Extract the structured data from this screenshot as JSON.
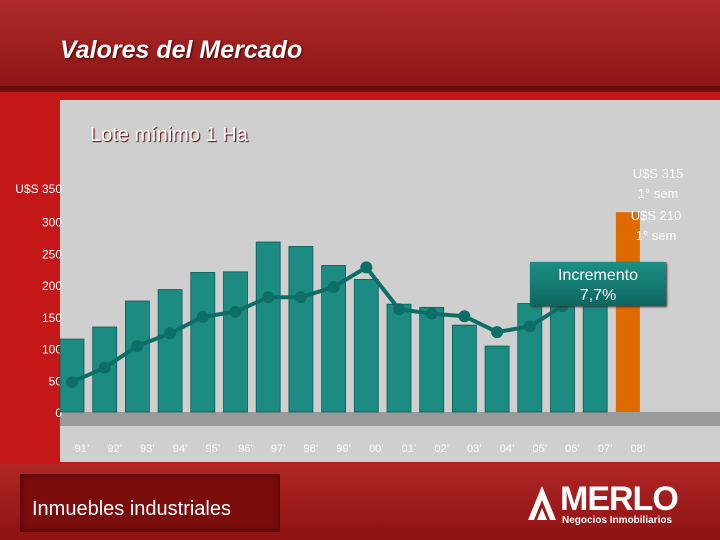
{
  "page": {
    "title": "Valores del Mercado",
    "chart_header": "Lote mínimo 1 Ha",
    "footer_label": "Inmuebles industriales",
    "brand": {
      "name": "MERLO",
      "tagline": "Negocios Inmobiliarios"
    }
  },
  "colors": {
    "header": "#a81f1f",
    "content": "#c41818",
    "panel": "#cfcfcf",
    "bar": "#1c8c82",
    "highlight_bar": "#de6a00",
    "line": "#0d6e67"
  },
  "chart_data": {
    "type": "bar",
    "title": "",
    "xlabel": "",
    "ylabel": "",
    "categories": [
      "91’",
      "92’",
      "93’",
      "94’",
      "95’",
      "96’",
      "97’",
      "98’",
      "99’",
      "00’",
      "01’",
      "02’",
      "03’",
      "04’",
      "05’",
      "06’",
      "07’",
      "08’"
    ],
    "ylim": [
      0,
      350
    ],
    "yticks": [
      0,
      50,
      100,
      150,
      200,
      250,
      300
    ],
    "ytick_labels": [
      "0",
      "50",
      "100",
      "150",
      "200",
      "250",
      "300"
    ],
    "y_unit_label": "U$S 350",
    "grid": false,
    "series": [
      {
        "kind": "bar",
        "values": [
          115,
          134,
          175,
          193,
          220,
          221,
          268,
          261,
          231,
          209,
          170,
          165,
          137,
          104,
          171,
          215,
          210,
          null
        ]
      },
      {
        "kind": "line",
        "values": [
          47,
          70,
          104,
          124,
          150,
          158,
          181,
          181,
          197,
          228,
          162,
          155,
          151,
          126,
          135,
          167,
          200,
          208
        ]
      }
    ],
    "highlight": {
      "category": "08’",
      "value": 315,
      "label": "U$S 315",
      "sublabel": "1° sem"
    },
    "annotations": [
      {
        "label": "U$S 210",
        "sublabel": "1° sem"
      },
      {
        "label": "Incremento",
        "sublabel": "7,7%"
      }
    ]
  }
}
